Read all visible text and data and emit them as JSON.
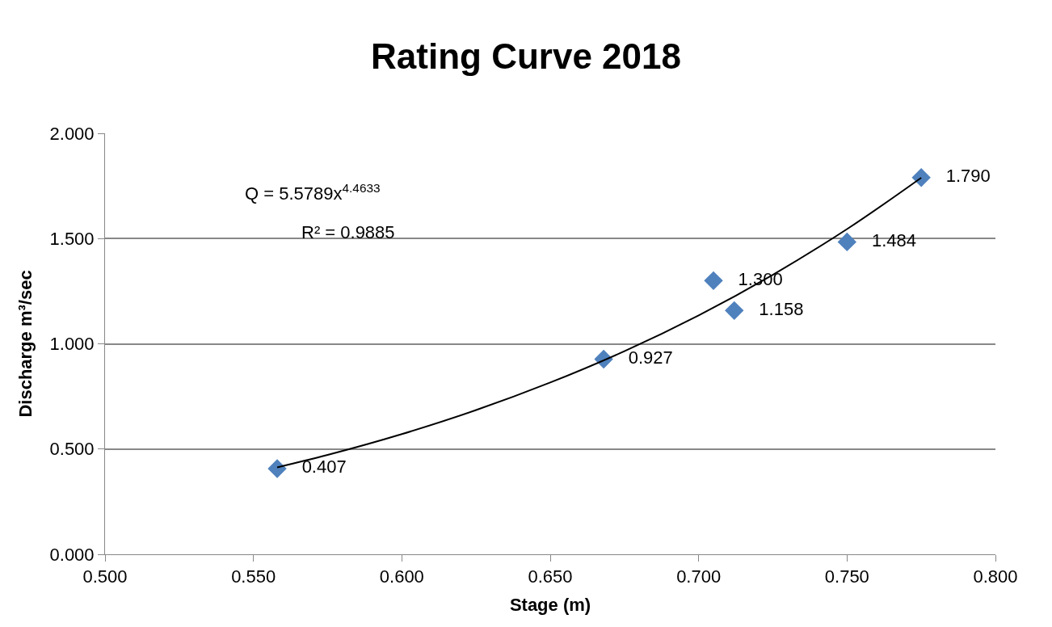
{
  "chart_data": {
    "type": "scatter",
    "title": "Rating Curve 2018",
    "xlabel": "Stage (m)",
    "ylabel": "Discharge m³/sec",
    "annotations": [
      "Q = 5.5789x$^{4.4633}$",
      "R² = 0.9885"
    ],
    "xlim": [
      0.5,
      0.8
    ],
    "xticks": [
      {
        "value": 0.5,
        "label": "0.500"
      },
      {
        "value": 0.55,
        "label": "0.550"
      },
      {
        "value": 0.6,
        "label": "0.600"
      },
      {
        "value": 0.65,
        "label": "0.650"
      },
      {
        "value": 0.7,
        "label": "0.700"
      },
      {
        "value": 0.75,
        "label": "0.750"
      },
      {
        "value": 0.8,
        "label": "0.800"
      }
    ],
    "ylim": [
      0,
      2
    ],
    "yticks": [
      {
        "value": 0,
        "label": "0.000"
      },
      {
        "value": 0.5,
        "label": "0.500"
      },
      {
        "value": 1,
        "label": "1.000"
      },
      {
        "value": 1.5,
        "label": "1.500"
      },
      {
        "value": 2,
        "label": "2.000"
      }
    ],
    "grid": "y",
    "series": [
      {
        "color": "#4f81bd",
        "marker": "diamond",
        "x": [
          0.558,
          0.668,
          0.705,
          0.712,
          0.75,
          0.775
        ],
        "values": [
          0.407,
          0.927,
          1.3,
          1.158,
          1.484,
          1.79
        ],
        "value_labels": [
          "0.407",
          "0.927",
          "1.300",
          "1.158",
          "1.484",
          "1.790"
        ]
      },
      {
        "type": "line",
        "color": "#000000",
        "line_style": "solid",
        "marker": "none",
        "x": [
          0.558,
          0.575,
          0.6,
          0.625,
          0.65,
          0.675,
          0.7,
          0.725,
          0.75,
          0.775
        ],
        "values": [
          0.413,
          0.472,
          0.571,
          0.685,
          0.816,
          0.965,
          1.135,
          1.328,
          1.545,
          1.789
        ]
      }
    ]
  }
}
